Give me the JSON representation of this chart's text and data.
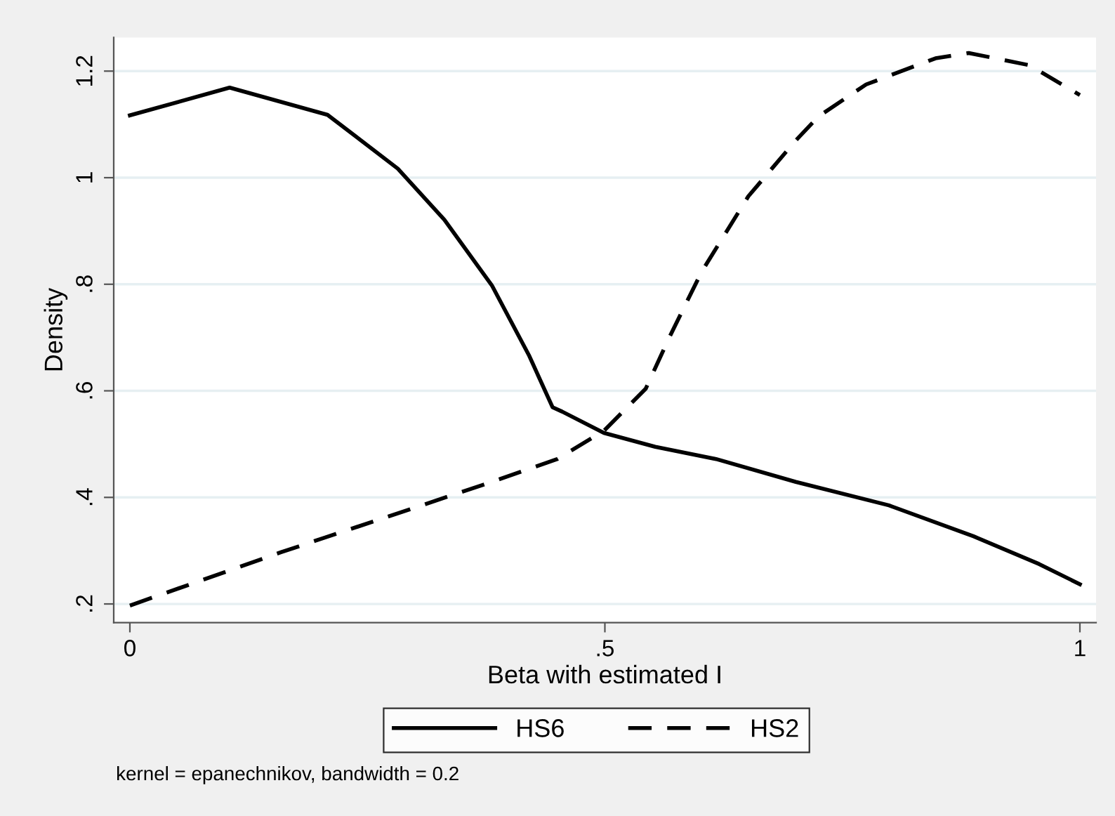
{
  "chart_data": {
    "type": "line",
    "xlabel": "Beta with estimated I",
    "ylabel": "Density",
    "xlim": [
      -0.017,
      1.017
    ],
    "ylim": [
      0.165,
      1.263
    ],
    "xticks": [
      0,
      {
        "value": 0.5,
        "label": ".5"
      },
      1
    ],
    "yticks": [
      {
        "value": 0.2,
        "label": ".2"
      },
      {
        "value": 0.4,
        "label": ".4"
      },
      {
        "value": 0.6,
        "label": ".6"
      },
      {
        "value": 0.8,
        "label": ".8"
      },
      1,
      {
        "value": 1.2,
        "label": "1.2"
      }
    ],
    "grid": "y",
    "legend": "bottom",
    "annotations": [
      "kernel = epanechnikov, bandwidth = 0.2"
    ],
    "series": [
      {
        "name": "HS6",
        "color": "#000000",
        "line_style": "solid",
        "x": [
          0,
          0.105,
          0.208,
          0.282,
          0.331,
          0.381,
          0.42,
          0.445,
          0.455,
          0.499,
          0.553,
          0.617,
          0.701,
          0.799,
          0.888,
          0.957,
          1
        ],
        "values": [
          1.117,
          1.169,
          1.118,
          1.017,
          0.921,
          0.798,
          0.667,
          0.569,
          0.561,
          0.521,
          0.495,
          0.472,
          0.429,
          0.385,
          0.327,
          0.275,
          0.237
        ]
      },
      {
        "name": "HS2",
        "color": "#000000",
        "line_style": "dashed",
        "x": [
          0,
          0.159,
          0.307,
          0.381,
          0.45,
          0.499,
          0.543,
          0.568,
          0.602,
          0.651,
          0.701,
          0.725,
          0.775,
          0.848,
          0.883,
          0.947,
          1
        ],
        "values": [
          0.197,
          0.297,
          0.385,
          0.429,
          0.472,
          0.525,
          0.604,
          0.701,
          0.824,
          0.965,
          1.07,
          1.115,
          1.175,
          1.224,
          1.234,
          1.211,
          1.155
        ]
      }
    ]
  }
}
